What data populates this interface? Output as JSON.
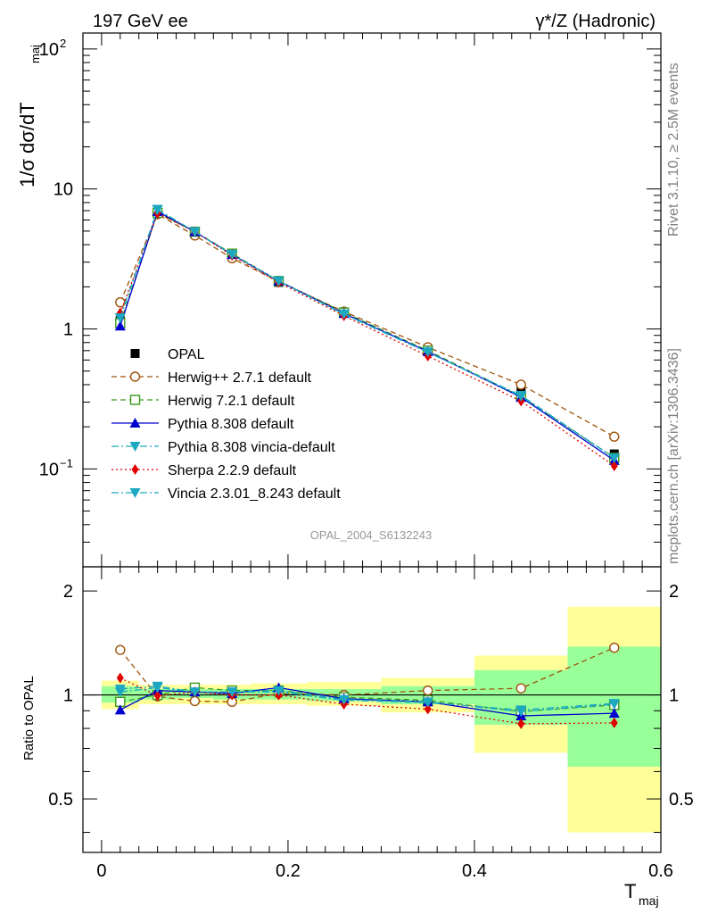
{
  "header": {
    "left_title": "197 GeV ee",
    "right_title": "γ*/Z (Hadronic)"
  },
  "side_labels": {
    "rivet": "Rivet 3.1.10, ≥ 2.5M events",
    "mcplots": "mcplots.cern.ch [arXiv:1306.3436]"
  },
  "analysis_id": "OPAL_2004_S6132243",
  "chart_data": [
    {
      "type": "line",
      "panel": "main",
      "yscale": "log",
      "ylim": [
        0.02,
        130
      ],
      "xlim": [
        -0.02,
        0.6
      ],
      "ylabel": "1/σ dσ/dT",
      "ylabel_sub": "maj",
      "yticks": [
        {
          "value": 0.1,
          "base": "10",
          "exp": "−1"
        },
        {
          "value": 1,
          "base": "1",
          "exp": ""
        },
        {
          "value": 10,
          "base": "10",
          "exp": ""
        },
        {
          "value": 100,
          "base": "10",
          "exp": "2"
        }
      ],
      "x": [
        0.02,
        0.06,
        0.1,
        0.14,
        0.19,
        0.26,
        0.35,
        0.45,
        0.55
      ],
      "data": {
        "name": "OPAL",
        "values": [
          1.15,
          6.75,
          4.85,
          3.35,
          2.15,
          1.32,
          0.72,
          0.37,
          0.128
        ]
      },
      "series": [
        {
          "name": "Herwig++ 2.7.1 default",
          "color": "#a0520a",
          "marker": "open-circle",
          "dash": "6,4",
          "values": [
            1.55,
            6.6,
            4.65,
            3.2,
            2.18,
            1.33,
            0.74,
            0.4,
            0.17
          ]
        },
        {
          "name": "Herwig 7.2.1 default",
          "color": "#3c9a1e",
          "marker": "open-square",
          "dash": "6,4",
          "values": [
            1.1,
            6.75,
            4.95,
            3.45,
            2.2,
            1.31,
            0.7,
            0.33,
            0.12
          ]
        },
        {
          "name": "Pythia 8.308 default",
          "color": "#0000d0",
          "marker": "triangle-up",
          "dash": "",
          "values": [
            1.05,
            6.9,
            4.95,
            3.4,
            2.2,
            1.29,
            0.69,
            0.325,
            0.115
          ]
        },
        {
          "name": "Pythia 8.308 vincia-default",
          "color": "#1ca8c0",
          "marker": "triangle-down",
          "dash": "8,3,2,3",
          "values": [
            1.2,
            7.15,
            4.95,
            3.4,
            2.2,
            1.27,
            0.68,
            0.335,
            0.12
          ]
        },
        {
          "name": "Sherpa 2.2.9 default",
          "color": "#e00000",
          "marker": "diamond",
          "dash": "2,3",
          "values": [
            1.3,
            6.7,
            4.95,
            3.35,
            2.15,
            1.24,
            0.64,
            0.305,
            0.105
          ]
        },
        {
          "name": "Vincia 2.3.01_8.243 default",
          "color": "#1ca8c0",
          "marker": "triangle-down",
          "dash": "8,3,2,3",
          "values": [
            1.2,
            7.1,
            4.95,
            3.4,
            2.2,
            1.28,
            0.685,
            0.33,
            0.12
          ]
        }
      ]
    },
    {
      "type": "line",
      "panel": "ratio",
      "ylim": [
        0.35,
        2.35
      ],
      "xlim": [
        -0.02,
        0.6
      ],
      "ylabel": "Ratio to OPAL",
      "xlabel": "T",
      "xlabel_sub": "maj",
      "xticks": [
        0,
        0.2,
        0.4,
        0.6
      ],
      "xtick_labels": [
        "0",
        "0.2",
        "0.4",
        "0.6"
      ],
      "yticks": [
        0.5,
        1,
        2
      ],
      "ytick_labels": [
        "0.5",
        "1",
        "2"
      ],
      "bins": [
        [
          0,
          0.04
        ],
        [
          0.04,
          0.08
        ],
        [
          0.08,
          0.12
        ],
        [
          0.12,
          0.16
        ],
        [
          0.16,
          0.22
        ],
        [
          0.22,
          0.3
        ],
        [
          0.3,
          0.4
        ],
        [
          0.4,
          0.5
        ],
        [
          0.5,
          0.6
        ]
      ],
      "band_green": [
        [
          0.95,
          1.06
        ],
        [
          0.97,
          1.04
        ],
        [
          0.98,
          1.04
        ],
        [
          0.97,
          1.04
        ],
        [
          0.97,
          1.04
        ],
        [
          0.96,
          1.04
        ],
        [
          0.94,
          1.06
        ],
        [
          0.82,
          1.18
        ],
        [
          0.62,
          1.38
        ]
      ],
      "band_yellow": [
        [
          0.91,
          1.1
        ],
        [
          0.94,
          1.07
        ],
        [
          0.94,
          1.07
        ],
        [
          0.94,
          1.07
        ],
        [
          0.94,
          1.08
        ],
        [
          0.93,
          1.09
        ],
        [
          0.89,
          1.12
        ],
        [
          0.68,
          1.3
        ],
        [
          0.4,
          1.8
        ]
      ],
      "x": [
        0.02,
        0.06,
        0.1,
        0.14,
        0.19,
        0.26,
        0.35,
        0.45,
        0.55
      ],
      "series": [
        {
          "name": "Herwig++ 2.7.1 default",
          "color": "#a0520a",
          "marker": "open-circle",
          "dash": "6,4",
          "values": [
            1.35,
            0.99,
            0.96,
            0.955,
            1.01,
            1.0,
            1.03,
            1.045,
            1.37
          ]
        },
        {
          "name": "Herwig 7.2.1 default",
          "color": "#3c9a1e",
          "marker": "open-square",
          "dash": "6,4",
          "values": [
            0.955,
            1.0,
            1.05,
            1.03,
            1.03,
            0.985,
            0.965,
            0.895,
            0.935
          ]
        },
        {
          "name": "Pythia 8.308 default",
          "color": "#0000d0",
          "marker": "triangle-up",
          "dash": "",
          "values": [
            0.905,
            1.03,
            1.02,
            1.01,
            1.05,
            0.975,
            0.955,
            0.87,
            0.885
          ]
        },
        {
          "name": "Pythia 8.308 vincia-default",
          "color": "#1ca8c0",
          "marker": "triangle-down",
          "dash": "8,3,2,3",
          "values": [
            1.04,
            1.06,
            1.02,
            1.02,
            1.02,
            0.965,
            0.95,
            0.905,
            0.945
          ]
        },
        {
          "name": "Sherpa 2.2.9 default",
          "color": "#e00000",
          "marker": "diamond",
          "dash": "2,3",
          "values": [
            1.12,
            0.995,
            1.02,
            1.0,
            1.0,
            0.94,
            0.91,
            0.825,
            0.83
          ]
        },
        {
          "name": "Vincia 2.3.01_8.243 default",
          "color": "#1ca8c0",
          "marker": "triangle-down",
          "dash": "8,3,2,3",
          "values": [
            1.02,
            1.05,
            1.02,
            1.02,
            1.03,
            0.97,
            0.955,
            0.895,
            0.94
          ]
        }
      ]
    }
  ]
}
